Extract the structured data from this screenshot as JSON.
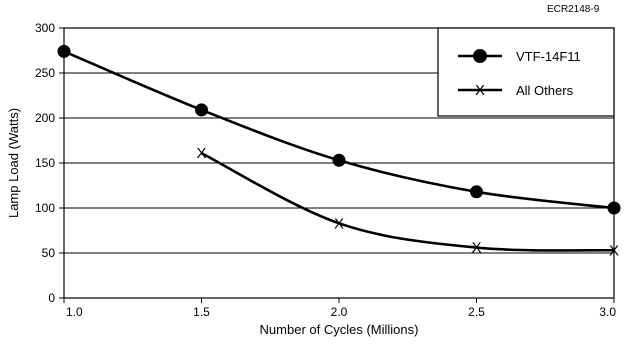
{
  "ref_code": "ECR2148-9",
  "chart_data": {
    "type": "line",
    "title": "",
    "xlabel": "Number of Cycles (Millions)",
    "ylabel": "Lamp Load (Watts)",
    "xlim": [
      1.0,
      3.0
    ],
    "ylim": [
      0,
      300
    ],
    "x_ticks": [
      "1.0",
      "1.5",
      "2.0",
      "2.5",
      "3.0"
    ],
    "y_ticks": [
      "0",
      "50",
      "100",
      "150",
      "200",
      "250",
      "300"
    ],
    "grid": "horizontal",
    "legend_position": "top-right",
    "series": [
      {
        "name": "VTF-14F11",
        "marker": "circle",
        "x": [
          1.0,
          1.5,
          2.0,
          2.5,
          3.0
        ],
        "y": [
          274,
          209,
          153,
          118,
          100
        ]
      },
      {
        "name": "All Others",
        "marker": "x",
        "x": [
          1.5,
          2.0,
          2.5,
          3.0
        ],
        "y": [
          161,
          83,
          56,
          53
        ]
      }
    ]
  }
}
